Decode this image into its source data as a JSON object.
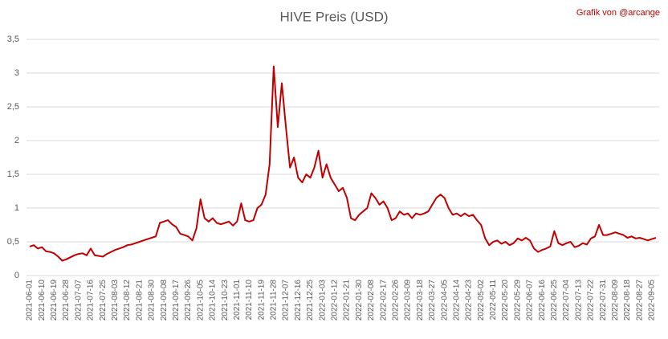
{
  "chart_data": {
    "type": "line",
    "title": "HIVE Preis (USD)",
    "annotation": "Grafik von @arcange",
    "categories": [
      "2021-06-01",
      null,
      null,
      "2021-06-10",
      null,
      null,
      "2021-06-19",
      null,
      null,
      "2021-06-28",
      null,
      null,
      "2021-07-07",
      null,
      null,
      "2021-07-16",
      null,
      null,
      "2021-07-25",
      null,
      null,
      "2021-08-03",
      null,
      null,
      "2021-08-12",
      null,
      null,
      "2021-08-21",
      null,
      null,
      "2021-08-30",
      null,
      null,
      "2021-09-08",
      null,
      null,
      "2021-09-17",
      null,
      null,
      "2021-09-26",
      null,
      null,
      "2021-10-05",
      null,
      null,
      "2021-10-14",
      null,
      null,
      "2021-10-23",
      null,
      null,
      "2021-11-01",
      null,
      null,
      "2021-11-10",
      null,
      null,
      "2021-11-19",
      null,
      null,
      "2021-11-28",
      null,
      null,
      "2021-12-07",
      null,
      null,
      "2021-12-16",
      null,
      null,
      "2021-12-25",
      null,
      null,
      "2022-01-03",
      null,
      null,
      "2022-01-12",
      null,
      null,
      "2022-01-21",
      null,
      null,
      "2022-01-30",
      null,
      null,
      "2022-02-08",
      null,
      null,
      "2022-02-17",
      null,
      null,
      "2022-02-26",
      null,
      null,
      "2022-03-09",
      null,
      null,
      "2022-03-18",
      null,
      null,
      "2022-03-27",
      null,
      null,
      "2022-04-05",
      null,
      null,
      "2022-04-14",
      null,
      null,
      "2022-04-23",
      null,
      null,
      "2022-05-02",
      null,
      null,
      "2022-05-11",
      null,
      null,
      "2022-05-20",
      null,
      null,
      "2022-05-29",
      null,
      null,
      "2022-06-07",
      null,
      null,
      "2022-06-16",
      null,
      null,
      "2022-06-25",
      null,
      null,
      "2022-07-04",
      null,
      null,
      "2022-07-13",
      null,
      null,
      "2022-07-22",
      null,
      null,
      "2022-07-31",
      null,
      null,
      "2022-08-09",
      null,
      null,
      "2022-08-18",
      null,
      null,
      "2022-08-27",
      null,
      null,
      "2022-09-05",
      null
    ],
    "series": [
      {
        "name": "HIVE",
        "color": "#c00000",
        "values": [
          0.43,
          0.45,
          0.4,
          0.42,
          0.36,
          0.35,
          0.33,
          0.28,
          0.22,
          0.24,
          0.27,
          0.3,
          0.32,
          0.33,
          0.3,
          0.4,
          0.3,
          0.29,
          0.28,
          0.32,
          0.35,
          0.38,
          0.4,
          0.42,
          0.45,
          0.46,
          0.48,
          0.5,
          0.52,
          0.54,
          0.56,
          0.58,
          0.78,
          0.8,
          0.82,
          0.76,
          0.72,
          0.62,
          0.6,
          0.58,
          0.52,
          0.7,
          1.13,
          0.85,
          0.8,
          0.85,
          0.78,
          0.76,
          0.78,
          0.8,
          0.74,
          0.8,
          1.07,
          0.82,
          0.8,
          0.82,
          1.0,
          1.05,
          1.2,
          1.65,
          3.1,
          2.2,
          2.85,
          2.2,
          1.6,
          1.75,
          1.45,
          1.38,
          1.5,
          1.45,
          1.6,
          1.85,
          1.45,
          1.65,
          1.45,
          1.35,
          1.25,
          1.3,
          1.15,
          0.85,
          0.82,
          0.9,
          0.95,
          1.0,
          1.22,
          1.15,
          1.05,
          1.1,
          1.0,
          0.82,
          0.85,
          0.95,
          0.9,
          0.92,
          0.85,
          0.92,
          0.9,
          0.92,
          0.95,
          1.05,
          1.15,
          1.2,
          1.15,
          1.0,
          0.9,
          0.92,
          0.88,
          0.92,
          0.88,
          0.9,
          0.82,
          0.75,
          0.55,
          0.45,
          0.5,
          0.52,
          0.47,
          0.5,
          0.45,
          0.48,
          0.55,
          0.52,
          0.56,
          0.52,
          0.4,
          0.35,
          0.38,
          0.4,
          0.43,
          0.66,
          0.48,
          0.45,
          0.48,
          0.5,
          0.42,
          0.44,
          0.48,
          0.46,
          0.55,
          0.58,
          0.75,
          0.6,
          0.6,
          0.62,
          0.64,
          0.62,
          0.6,
          0.56,
          0.58,
          0.55,
          0.56,
          0.54,
          0.52,
          0.54,
          0.56
        ]
      }
    ],
    "ylim": [
      0,
      3.5
    ],
    "yticks": [
      0,
      {
        "value": 0.5,
        "label": "0,5"
      },
      1,
      {
        "value": 1.5,
        "label": "1,5"
      },
      2,
      {
        "value": 2.5,
        "label": "2,5"
      },
      3,
      {
        "value": 3.5,
        "label": "3,5"
      }
    ],
    "grid": true
  }
}
